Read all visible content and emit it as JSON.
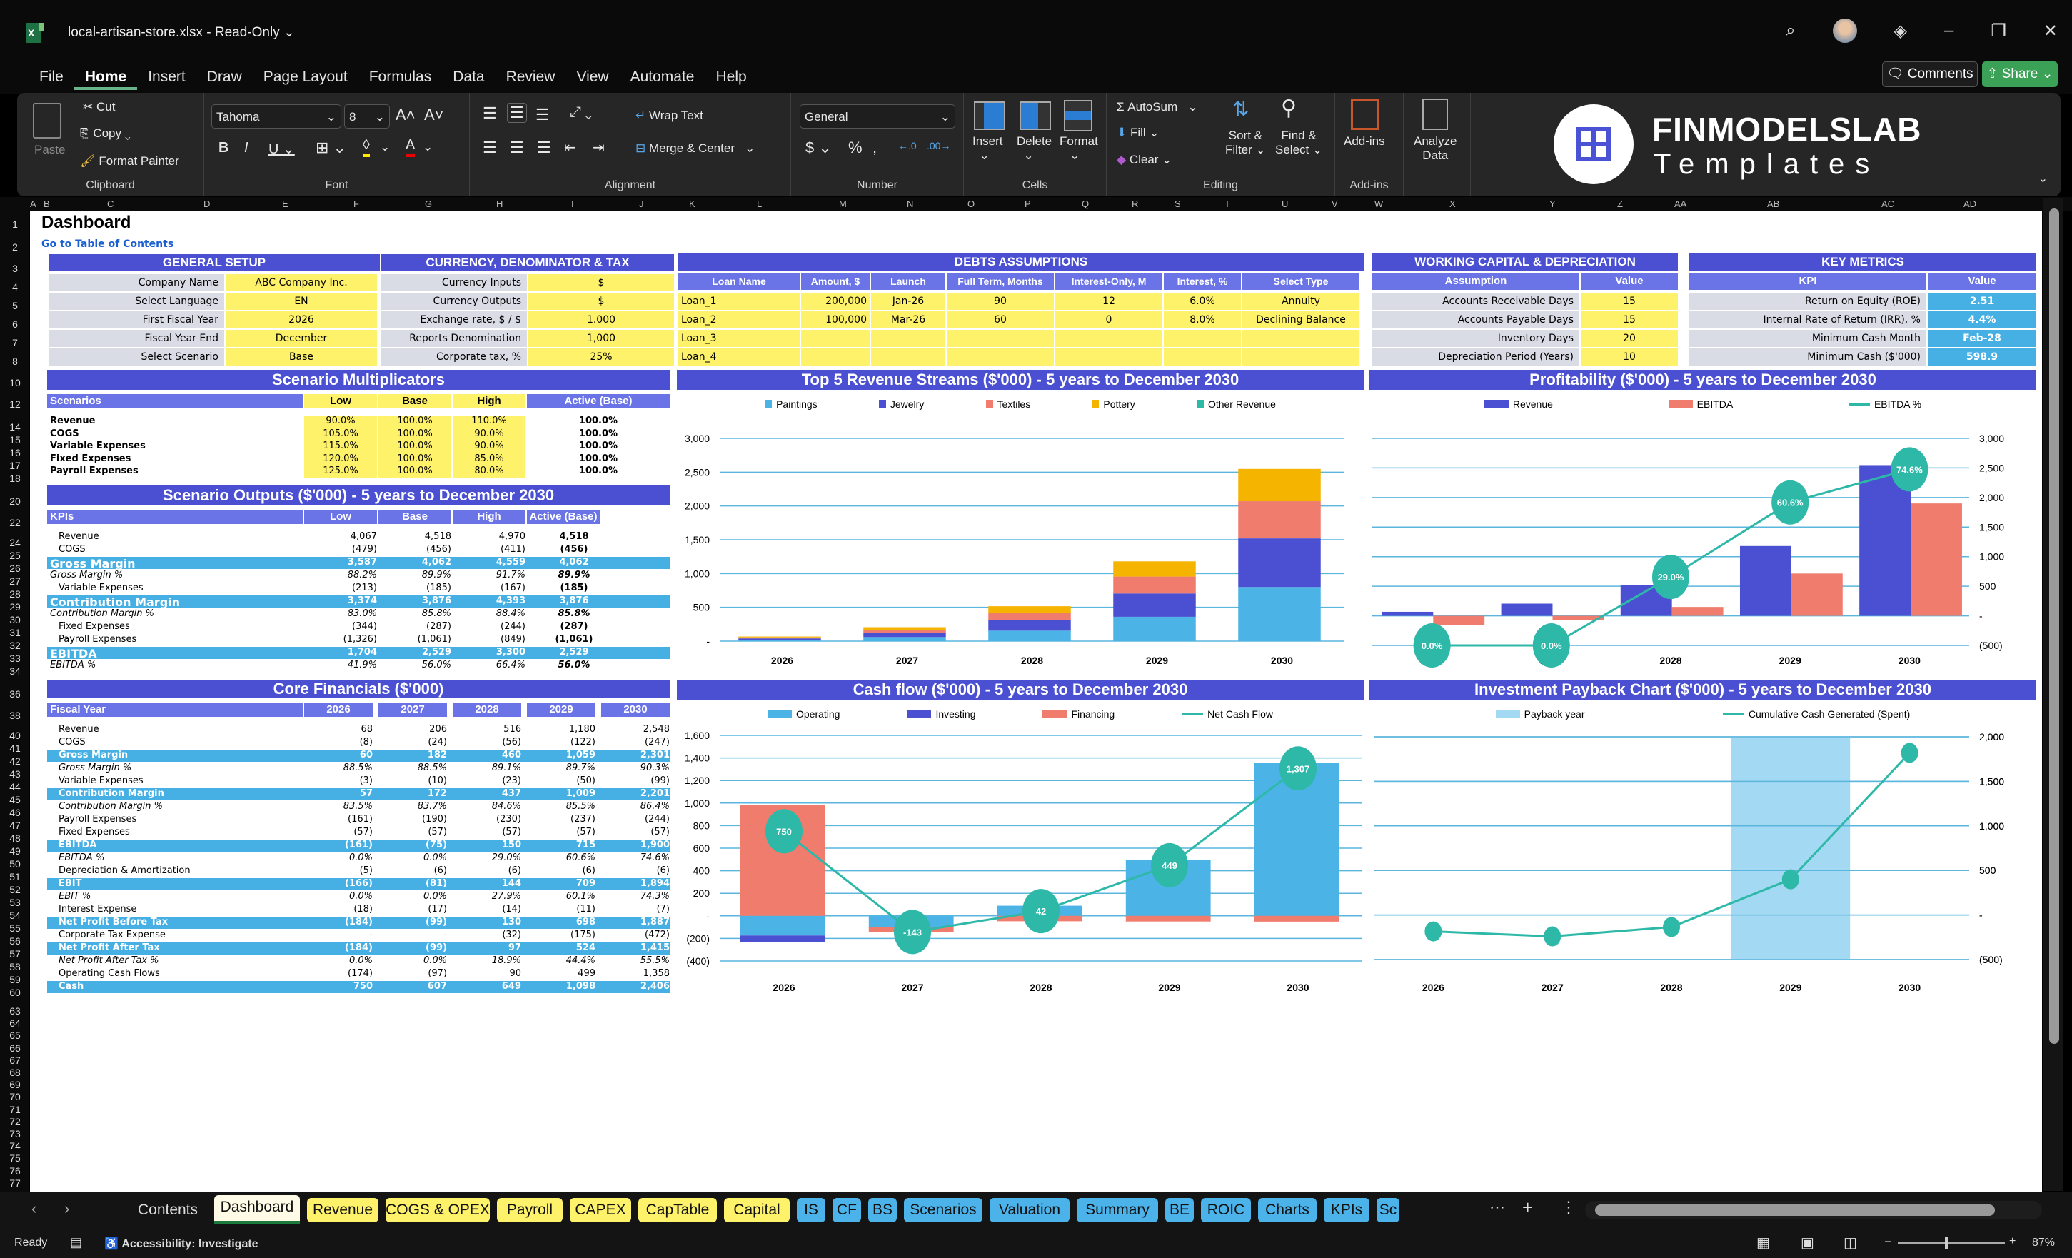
{
  "window": {
    "title": "local-artisan-store.xlsx - Read-Only",
    "controls": [
      "search-icon",
      "avatar",
      "diamond-icon",
      "minimize",
      "restore",
      "close"
    ]
  },
  "menu": [
    "File",
    "Home",
    "Insert",
    "Draw",
    "Page Layout",
    "Formulas",
    "Data",
    "Review",
    "View",
    "Automate",
    "Help"
  ],
  "menu_active": "Home",
  "top_buttons": {
    "comments": "Comments",
    "share": "Share"
  },
  "ribbon": {
    "clipboard": {
      "label": "Clipboard",
      "paste": "Paste",
      "cut": "Cut",
      "copy": "Copy",
      "format_painter": "Format Painter"
    },
    "font": {
      "label": "Font",
      "font_name": "Tahoma",
      "font_size": "8"
    },
    "alignment": {
      "label": "Alignment",
      "wrap": "Wrap Text",
      "merge": "Merge & Center"
    },
    "number": {
      "label": "Number",
      "format": "General"
    },
    "cells": {
      "label": "Cells",
      "insert": "Insert",
      "delete": "Delete",
      "format": "Format"
    },
    "editing": {
      "label": "Editing",
      "autosum": "AutoSum",
      "fill": "Fill",
      "clear": "Clear",
      "sort": "Sort &",
      "sort2": "Filter",
      "find": "Find &",
      "find2": "Select"
    },
    "addins": {
      "label": "Add-ins",
      "addins": "Add-ins",
      "analyze": "Analyze",
      "analyze2": "Data"
    },
    "brand": {
      "line1": "FINMODELSLAB",
      "line2": "Templates"
    }
  },
  "columns": [
    "A",
    "B",
    "C",
    "D",
    "E",
    "F",
    "G",
    "H",
    "I",
    "J",
    "K",
    "L",
    "M",
    "N",
    "O",
    "P",
    "Q",
    "R",
    "S",
    "T",
    "U",
    "V",
    "W",
    "X",
    "Y",
    "Z",
    "AA",
    "AB",
    "AC",
    "AD"
  ],
  "sheet": {
    "title": "Dashboard",
    "toc_link": "Go to Table of Contents",
    "general_setup": {
      "header": "GENERAL SETUP",
      "rows": [
        {
          "label": "Company Name",
          "value": "ABC Company Inc."
        },
        {
          "label": "Select Language",
          "value": "EN"
        },
        {
          "label": "First Fiscal Year",
          "value": "2026"
        },
        {
          "label": "Fiscal Year End",
          "value": "December"
        },
        {
          "label": "Select Scenario",
          "value": "Base"
        }
      ]
    },
    "currency": {
      "header": "CURRENCY, DENOMINATOR & TAX",
      "rows": [
        {
          "label": "Currency Inputs",
          "value": "$"
        },
        {
          "label": "Currency Outputs",
          "value": "$"
        },
        {
          "label": "Exchange rate, $ / $",
          "value": "1.000"
        },
        {
          "label": "Reports Denomination",
          "value": "1,000"
        },
        {
          "label": "Corporate tax, %",
          "value": "25%"
        }
      ]
    },
    "debts": {
      "header": "DEBTS ASSUMPTIONS",
      "columns": [
        "Loan Name",
        "Amount, $",
        "Launch",
        "Full Term, Months",
        "Interest-Only, M",
        "Interest, %",
        "Select Type"
      ],
      "rows": [
        [
          "Loan_1",
          "200,000",
          "Jan-26",
          "90",
          "12",
          "6.0%",
          "Annuity"
        ],
        [
          "Loan_2",
          "100,000",
          "Mar-26",
          "60",
          "0",
          "8.0%",
          "Declining Balance"
        ],
        [
          "Loan_3",
          "",
          "",
          "",
          "",
          "",
          ""
        ],
        [
          "Loan_4",
          "",
          "",
          "",
          "",
          "",
          ""
        ]
      ]
    },
    "working_capital": {
      "header": "WORKING CAPITAL & DEPRECIATION",
      "columns": [
        "Assumption",
        "Value"
      ],
      "rows": [
        [
          "Accounts Receivable Days",
          "15"
        ],
        [
          "Accounts Payable Days",
          "15"
        ],
        [
          "Inventory Days",
          "20"
        ],
        [
          "Depreciation Period (Years)",
          "10"
        ]
      ]
    },
    "key_metrics": {
      "header": "KEY METRICS",
      "columns": [
        "KPI",
        "Value"
      ],
      "rows": [
        [
          "Return on Equity (ROE)",
          "2.51"
        ],
        [
          "Internal Rate of Return (IRR), %",
          "4.4%"
        ],
        [
          "Minimum Cash Month",
          "Feb-28"
        ],
        [
          "Minimum Cash ($'000)",
          "598.9"
        ]
      ]
    },
    "scenario_multipliers": {
      "header": "Scenario Multiplicators",
      "columns": [
        "Scenarios",
        "Low",
        "Base",
        "High",
        "Active (Base)"
      ],
      "rows": [
        [
          "Revenue",
          "90.0%",
          "100.0%",
          "110.0%",
          "100.0%"
        ],
        [
          "COGS",
          "105.0%",
          "100.0%",
          "90.0%",
          "100.0%"
        ],
        [
          "Variable Expenses",
          "115.0%",
          "100.0%",
          "90.0%",
          "100.0%"
        ],
        [
          "Fixed Expenses",
          "120.0%",
          "100.0%",
          "85.0%",
          "100.0%"
        ],
        [
          "Payroll Expenses",
          "125.0%",
          "100.0%",
          "80.0%",
          "100.0%"
        ]
      ]
    },
    "scenario_outputs": {
      "header": "Scenario Outputs ($'000) - 5 years to December 2030",
      "columns": [
        "KPIs",
        "Low",
        "Base",
        "High",
        "Active (Base)"
      ],
      "rows": [
        {
          "label": "Revenue",
          "vals": [
            "4,067",
            "4,518",
            "4,970",
            "4,518"
          ],
          "style": "plain"
        },
        {
          "label": "COGS",
          "vals": [
            "(479)",
            "(456)",
            "(411)",
            "(456)"
          ],
          "style": "plain"
        },
        {
          "label": "Gross Margin",
          "vals": [
            "3,587",
            "4,062",
            "4,559",
            "4,062"
          ],
          "style": "band"
        },
        {
          "label": "Gross Margin %",
          "vals": [
            "88.2%",
            "89.9%",
            "91.7%",
            "89.9%"
          ],
          "style": "pct"
        },
        {
          "label": "Variable Expenses",
          "vals": [
            "(213)",
            "(185)",
            "(167)",
            "(185)"
          ],
          "style": "plain"
        },
        {
          "label": "Contribution Margin",
          "vals": [
            "3,374",
            "3,876",
            "4,393",
            "3,876"
          ],
          "style": "band"
        },
        {
          "label": "Contribution Margin %",
          "vals": [
            "83.0%",
            "85.8%",
            "88.4%",
            "85.8%"
          ],
          "style": "pct"
        },
        {
          "label": "Fixed Expenses",
          "vals": [
            "(344)",
            "(287)",
            "(244)",
            "(287)"
          ],
          "style": "plain"
        },
        {
          "label": "Payroll Expenses",
          "vals": [
            "(1,326)",
            "(1,061)",
            "(849)",
            "(1,061)"
          ],
          "style": "plain"
        },
        {
          "label": "EBITDA",
          "vals": [
            "1,704",
            "2,529",
            "3,300",
            "2,529"
          ],
          "style": "band"
        },
        {
          "label": "EBITDA %",
          "vals": [
            "41.9%",
            "56.0%",
            "66.4%",
            "56.0%"
          ],
          "style": "pct"
        }
      ]
    },
    "core_financials": {
      "header": "Core Financials ($'000)",
      "columns": [
        "Fiscal Year",
        "2026",
        "2027",
        "2028",
        "2029",
        "2030"
      ],
      "rows": [
        {
          "label": "Revenue",
          "vals": [
            "68",
            "206",
            "516",
            "1,180",
            "2,548"
          ],
          "style": "plain"
        },
        {
          "label": "COGS",
          "vals": [
            "(8)",
            "(24)",
            "(56)",
            "(122)",
            "(247)"
          ],
          "style": "plain"
        },
        {
          "label": "Gross Margin",
          "vals": [
            "60",
            "182",
            "460",
            "1,059",
            "2,301"
          ],
          "style": "band"
        },
        {
          "label": "Gross Margin %",
          "vals": [
            "88.5%",
            "88.5%",
            "89.1%",
            "89.7%",
            "90.3%"
          ],
          "style": "pct"
        },
        {
          "label": "Variable Expenses",
          "vals": [
            "(3)",
            "(10)",
            "(23)",
            "(50)",
            "(99)"
          ],
          "style": "plain"
        },
        {
          "label": "Contribution Margin",
          "vals": [
            "57",
            "172",
            "437",
            "1,009",
            "2,201"
          ],
          "style": "band"
        },
        {
          "label": "Contribution Margin %",
          "vals": [
            "83.5%",
            "83.7%",
            "84.6%",
            "85.5%",
            "86.4%"
          ],
          "style": "pct"
        },
        {
          "label": "Payroll Expenses",
          "vals": [
            "(161)",
            "(190)",
            "(230)",
            "(237)",
            "(244)"
          ],
          "style": "plain"
        },
        {
          "label": "Fixed Expenses",
          "vals": [
            "(57)",
            "(57)",
            "(57)",
            "(57)",
            "(57)"
          ],
          "style": "plain"
        },
        {
          "label": "EBITDA",
          "vals": [
            "(161)",
            "(75)",
            "150",
            "715",
            "1,900"
          ],
          "style": "band"
        },
        {
          "label": "EBITDA %",
          "vals": [
            "0.0%",
            "0.0%",
            "29.0%",
            "60.6%",
            "74.6%"
          ],
          "style": "pct"
        },
        {
          "label": "Depreciation & Amortization",
          "vals": [
            "(5)",
            "(6)",
            "(6)",
            "(6)",
            "(6)"
          ],
          "style": "plain"
        },
        {
          "label": "EBIT",
          "vals": [
            "(166)",
            "(81)",
            "144",
            "709",
            "1,894"
          ],
          "style": "band"
        },
        {
          "label": "EBIT %",
          "vals": [
            "0.0%",
            "0.0%",
            "27.9%",
            "60.1%",
            "74.3%"
          ],
          "style": "pct"
        },
        {
          "label": "Interest Expense",
          "vals": [
            "(18)",
            "(17)",
            "(14)",
            "(11)",
            "(7)"
          ],
          "style": "plain"
        },
        {
          "label": "Net Profit Before Tax",
          "vals": [
            "(184)",
            "(99)",
            "130",
            "698",
            "1,887"
          ],
          "style": "band"
        },
        {
          "label": "Corporate Tax Expense",
          "vals": [
            "-",
            "-",
            "(32)",
            "(175)",
            "(472)"
          ],
          "style": "plain"
        },
        {
          "label": "Net Profit After Tax",
          "vals": [
            "(184)",
            "(99)",
            "97",
            "524",
            "1,415"
          ],
          "style": "band"
        },
        {
          "label": "Net Profit After Tax %",
          "vals": [
            "0.0%",
            "0.0%",
            "18.9%",
            "44.4%",
            "55.5%"
          ],
          "style": "pct"
        },
        {
          "label": "Operating Cash Flows",
          "vals": [
            "(174)",
            "(97)",
            "90",
            "499",
            "1,358"
          ],
          "style": "plain"
        },
        {
          "label": "Cash",
          "vals": [
            "750",
            "607",
            "649",
            "1,098",
            "2,406"
          ],
          "style": "band"
        }
      ]
    }
  },
  "chart_data": [
    {
      "type": "bar",
      "stacked": true,
      "title": "Top 5 Revenue Streams ($'000) - 5 years to December 2030",
      "categories": [
        "2026",
        "2027",
        "2028",
        "2029",
        "2030"
      ],
      "series": [
        {
          "name": "Paintings",
          "color": "#4bb3e6",
          "values": [
            20,
            60,
            155,
            360,
            800
          ]
        },
        {
          "name": "Jewelry",
          "color": "#4b50d3",
          "values": [
            20,
            60,
            155,
            345,
            720
          ]
        },
        {
          "name": "Textiles",
          "color": "#f07c6e",
          "values": [
            15,
            45,
            105,
            250,
            550
          ]
        },
        {
          "name": "Pottery",
          "color": "#f5b400",
          "values": [
            13,
            41,
            101,
            225,
            478
          ]
        },
        {
          "name": "Other Revenue",
          "color": "#2eb8a8",
          "values": [
            0,
            0,
            0,
            0,
            0
          ]
        }
      ],
      "yticks": [
        "-",
        "500",
        "1,000",
        "1,500",
        "2,000",
        "2,500",
        "3,000"
      ],
      "ylim": [
        0,
        3000
      ],
      "legend_position": "top",
      "grid": true
    },
    {
      "type": "bar",
      "title": "Profitability ($'000) - 5 years to December 2030",
      "categories": [
        "2026",
        "2027",
        "2028",
        "2029",
        "2030"
      ],
      "series": [
        {
          "name": "Revenue",
          "color": "#4b50d3",
          "type": "bar",
          "values": [
            68,
            206,
            516,
            1180,
            2548
          ]
        },
        {
          "name": "EBITDA",
          "color": "#f07c6e",
          "type": "bar",
          "values": [
            -161,
            -75,
            150,
            715,
            1900
          ]
        },
        {
          "name": "EBITDA %",
          "color": "#2eb8a8",
          "type": "line",
          "values": [
            0.0,
            0.0,
            29.0,
            60.6,
            74.6
          ],
          "labels": [
            "0.0%",
            "0.0%",
            "29.0%",
            "60.6%",
            "74.6%"
          ]
        }
      ],
      "yticks": [
        "(500)",
        "-",
        "500",
        "1,000",
        "1,500",
        "2,000",
        "2,500",
        "3,000"
      ],
      "ylim": [
        -500,
        3000
      ],
      "axis_side": "right",
      "legend_position": "top",
      "grid": true
    },
    {
      "type": "bar",
      "stacked": true,
      "title": "Cash flow ($'000) - 5 years to December 2030",
      "categories": [
        "2026",
        "2027",
        "2028",
        "2029",
        "2030"
      ],
      "series": [
        {
          "name": "Operating",
          "color": "#4bb3e6",
          "type": "bar",
          "values": [
            -174,
            -97,
            90,
            499,
            1358
          ]
        },
        {
          "name": "Investing",
          "color": "#4b50d3",
          "type": "bar",
          "values": [
            -60,
            0,
            0,
            0,
            0
          ]
        },
        {
          "name": "Financing",
          "color": "#f07c6e",
          "type": "bar",
          "values": [
            984,
            -46,
            -48,
            -50,
            -51
          ]
        },
        {
          "name": "Net Cash Flow",
          "color": "#2eb8a8",
          "type": "line",
          "values": [
            750,
            -143,
            42,
            449,
            1307
          ],
          "labels": [
            "750",
            "-143",
            "42",
            "449",
            "1,307"
          ]
        }
      ],
      "yticks": [
        "(400)",
        "(200)",
        "-",
        "200",
        "400",
        "600",
        "800",
        "1,000",
        "1,200",
        "1,400",
        "1,600"
      ],
      "ylim": [
        -400,
        1600
      ],
      "legend_position": "top",
      "grid": true
    },
    {
      "type": "line",
      "title": "Investment Payback Chart ($'000) - 5 years to December 2030",
      "categories": [
        "2026",
        "2027",
        "2028",
        "2029",
        "2030"
      ],
      "series": [
        {
          "name": "Payback year",
          "color": "#a3d9f3",
          "type": "bar",
          "highlight_category": "2029"
        },
        {
          "name": "Cumulative Cash Generated (Spent)",
          "color": "#2eb8a8",
          "type": "line",
          "values": [
            -184,
            -240,
            -135,
            400,
            1820
          ]
        }
      ],
      "yticks": [
        "(500)",
        "-",
        "500",
        "1,000",
        "1,500",
        "2,000"
      ],
      "ylim": [
        -500,
        2000
      ],
      "axis_side": "right",
      "legend_position": "top",
      "grid": true
    }
  ],
  "tabs": [
    {
      "label": "Contents",
      "style": "plain"
    },
    {
      "label": "Dashboard",
      "style": "current"
    },
    {
      "label": "Revenue",
      "style": "yellow"
    },
    {
      "label": "COGS & OPEX",
      "style": "yellow"
    },
    {
      "label": "Payroll",
      "style": "yellow"
    },
    {
      "label": "CAPEX",
      "style": "yellow"
    },
    {
      "label": "CapTable",
      "style": "yellow"
    },
    {
      "label": "Capital",
      "style": "yellow"
    },
    {
      "label": "IS",
      "style": "blue"
    },
    {
      "label": "CF",
      "style": "blue"
    },
    {
      "label": "BS",
      "style": "blue"
    },
    {
      "label": "Scenarios",
      "style": "blue"
    },
    {
      "label": "Valuation",
      "style": "blue"
    },
    {
      "label": "Summary",
      "style": "blue"
    },
    {
      "label": "BE",
      "style": "blue"
    },
    {
      "label": "ROIC",
      "style": "blue"
    },
    {
      "label": "Charts",
      "style": "blue"
    },
    {
      "label": "KPIs",
      "style": "blue"
    },
    {
      "label": "Sc",
      "style": "blue"
    }
  ],
  "status": {
    "ready": "Ready",
    "accessibility": "Accessibility: Investigate",
    "zoom": "87%"
  }
}
